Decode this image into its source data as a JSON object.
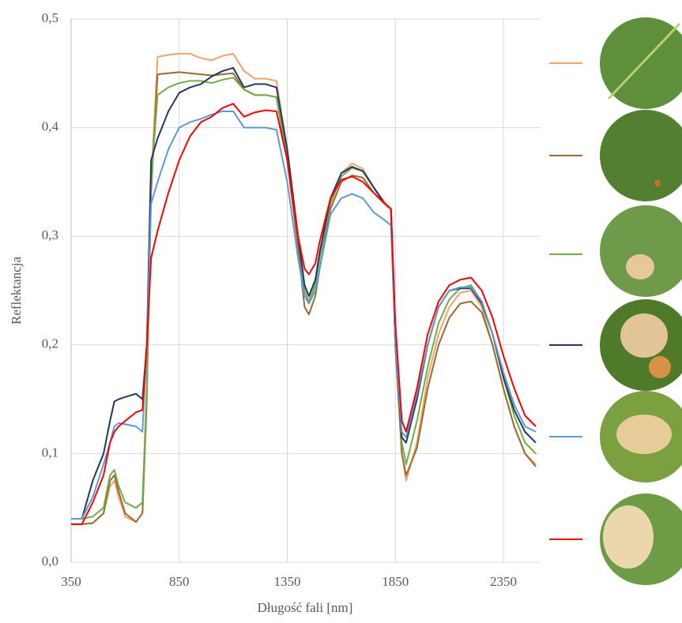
{
  "chart_data": {
    "type": "line",
    "x_label": "Długość fali [nm]",
    "y_label": "Reflektancja",
    "x": [
      350,
      400,
      450,
      500,
      530,
      550,
      570,
      600,
      650,
      680,
      700,
      720,
      750,
      800,
      850,
      900,
      950,
      1000,
      1050,
      1100,
      1150,
      1200,
      1250,
      1300,
      1350,
      1400,
      1430,
      1450,
      1480,
      1500,
      1550,
      1600,
      1650,
      1700,
      1750,
      1800,
      1830,
      1850,
      1880,
      1900,
      1950,
      2000,
      2050,
      2100,
      2150,
      2200,
      2250,
      2300,
      2350,
      2400,
      2450,
      2500
    ],
    "series": [
      {
        "color": "#f4a26a",
        "values": [
          0.035,
          0.035,
          0.036,
          0.045,
          0.07,
          0.075,
          0.06,
          0.042,
          0.037,
          0.045,
          0.15,
          0.35,
          0.465,
          0.467,
          0.468,
          0.468,
          0.464,
          0.462,
          0.466,
          0.468,
          0.452,
          0.445,
          0.445,
          0.443,
          0.38,
          0.3,
          0.25,
          0.24,
          0.26,
          0.28,
          0.33,
          0.358,
          0.367,
          0.362,
          0.345,
          0.332,
          0.325,
          0.2,
          0.1,
          0.075,
          0.11,
          0.17,
          0.21,
          0.235,
          0.248,
          0.25,
          0.235,
          0.2,
          0.16,
          0.125,
          0.1,
          0.09
        ]
      },
      {
        "color": "#9c6a30",
        "values": [
          0.035,
          0.035,
          0.036,
          0.045,
          0.075,
          0.08,
          0.065,
          0.045,
          0.037,
          0.045,
          0.15,
          0.34,
          0.449,
          0.45,
          0.451,
          0.45,
          0.449,
          0.448,
          0.449,
          0.45,
          0.435,
          0.43,
          0.43,
          0.428,
          0.37,
          0.29,
          0.235,
          0.228,
          0.245,
          0.27,
          0.325,
          0.35,
          0.356,
          0.354,
          0.34,
          0.33,
          0.325,
          0.2,
          0.1,
          0.08,
          0.105,
          0.16,
          0.2,
          0.225,
          0.238,
          0.24,
          0.23,
          0.2,
          0.16,
          0.125,
          0.1,
          0.088
        ]
      },
      {
        "color": "#70ad47",
        "values": [
          0.04,
          0.04,
          0.042,
          0.05,
          0.08,
          0.085,
          0.07,
          0.055,
          0.05,
          0.055,
          0.16,
          0.35,
          0.43,
          0.437,
          0.441,
          0.443,
          0.443,
          0.441,
          0.444,
          0.446,
          0.435,
          0.43,
          0.43,
          0.428,
          0.375,
          0.3,
          0.25,
          0.24,
          0.255,
          0.28,
          0.33,
          0.355,
          0.363,
          0.36,
          0.345,
          0.33,
          0.325,
          0.2,
          0.11,
          0.09,
          0.13,
          0.18,
          0.22,
          0.242,
          0.252,
          0.255,
          0.24,
          0.21,
          0.17,
          0.135,
          0.11,
          0.1
        ]
      },
      {
        "color": "#1f3864",
        "values": [
          0.04,
          0.04,
          0.075,
          0.1,
          0.13,
          0.148,
          0.15,
          0.152,
          0.155,
          0.15,
          0.2,
          0.37,
          0.39,
          0.415,
          0.432,
          0.437,
          0.44,
          0.447,
          0.452,
          0.455,
          0.437,
          0.44,
          0.44,
          0.437,
          0.38,
          0.3,
          0.255,
          0.245,
          0.26,
          0.285,
          0.335,
          0.358,
          0.364,
          0.36,
          0.345,
          0.33,
          0.325,
          0.2,
          0.115,
          0.11,
          0.15,
          0.2,
          0.235,
          0.25,
          0.252,
          0.252,
          0.238,
          0.21,
          0.17,
          0.14,
          0.12,
          0.11
        ]
      },
      {
        "color": "#5b9bd5",
        "values": [
          0.04,
          0.04,
          0.06,
          0.09,
          0.11,
          0.125,
          0.128,
          0.127,
          0.125,
          0.12,
          0.2,
          0.33,
          0.35,
          0.38,
          0.4,
          0.405,
          0.408,
          0.412,
          0.415,
          0.415,
          0.4,
          0.4,
          0.4,
          0.398,
          0.35,
          0.28,
          0.245,
          0.238,
          0.25,
          0.27,
          0.32,
          0.335,
          0.339,
          0.335,
          0.322,
          0.315,
          0.31,
          0.2,
          0.12,
          0.115,
          0.155,
          0.2,
          0.235,
          0.25,
          0.253,
          0.253,
          0.24,
          0.21,
          0.175,
          0.145,
          0.125,
          0.12
        ]
      },
      {
        "color": "#ff0000",
        "values": [
          0.035,
          0.035,
          0.055,
          0.08,
          0.11,
          0.12,
          0.125,
          0.13,
          0.138,
          0.14,
          0.2,
          0.28,
          0.305,
          0.34,
          0.37,
          0.392,
          0.405,
          0.41,
          0.418,
          0.422,
          0.41,
          0.414,
          0.416,
          0.415,
          0.37,
          0.3,
          0.27,
          0.265,
          0.275,
          0.295,
          0.335,
          0.352,
          0.355,
          0.35,
          0.34,
          0.33,
          0.325,
          0.22,
          0.13,
          0.12,
          0.16,
          0.21,
          0.24,
          0.255,
          0.26,
          0.262,
          0.25,
          0.225,
          0.19,
          0.16,
          0.135,
          0.125
        ]
      }
    ],
    "xlim": [
      350,
      2500
    ],
    "ylim": [
      0,
      0.5
    ],
    "xticks": [
      350,
      850,
      1350,
      1850,
      2350
    ],
    "yticks": [
      {
        "value": 0,
        "label": "0,0"
      },
      {
        "value": 0.1,
        "label": "0,1"
      },
      {
        "value": 0.2,
        "label": "0,2"
      },
      {
        "value": 0.3,
        "label": "0,3"
      },
      {
        "value": 0.4,
        "label": "0,4"
      },
      {
        "value": 0.5,
        "label": "0,5"
      }
    ],
    "grid": true
  }
}
